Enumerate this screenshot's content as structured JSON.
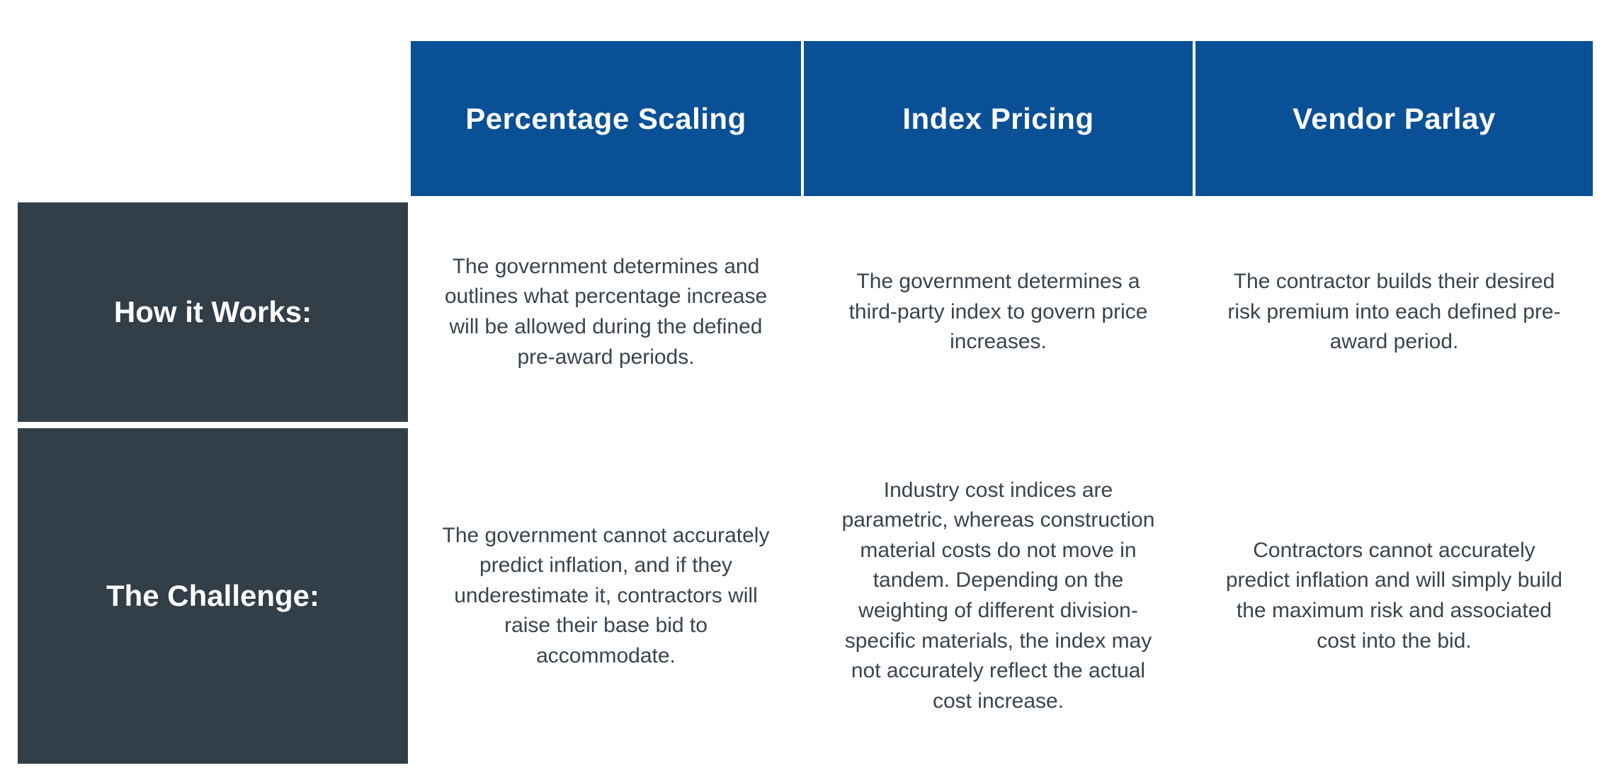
{
  "table": {
    "columns": [
      {
        "header": "Percentage Scaling"
      },
      {
        "header": "Index Pricing"
      },
      {
        "header": "Vendor Parlay"
      }
    ],
    "rows": [
      {
        "label": "How it Works:",
        "cells": [
          "The government determines and outlines what percentage increase will be allowed during the defined pre-award periods.",
          "The government determines a third-party index to govern price increases.",
          "The contractor builds their desired risk premium into each defined pre-award period."
        ]
      },
      {
        "label": "The Challenge:",
        "cells": [
          "The government cannot accurately predict inflation, and if they underestimate it, contractors will raise their base bid to accommodate.",
          "Industry cost indices are parametric, whereas construction material costs do not move in tandem. Depending on the weighting of different division-specific materials, the index may not accurately reflect the actual cost increase.",
          "Contractors cannot accurately predict inflation and will simply build the maximum risk and associated cost into the bid."
        ]
      }
    ],
    "colors": {
      "header_background": "#0a5096",
      "header_text": "#ffffff",
      "label_background": "#323e48",
      "label_text": "#ffffff",
      "row_how_it_works_background": "#cad0dc",
      "row_challenge_background": "#e6e8ee",
      "body_text": "#39444e",
      "page_background": "#ffffff"
    }
  }
}
